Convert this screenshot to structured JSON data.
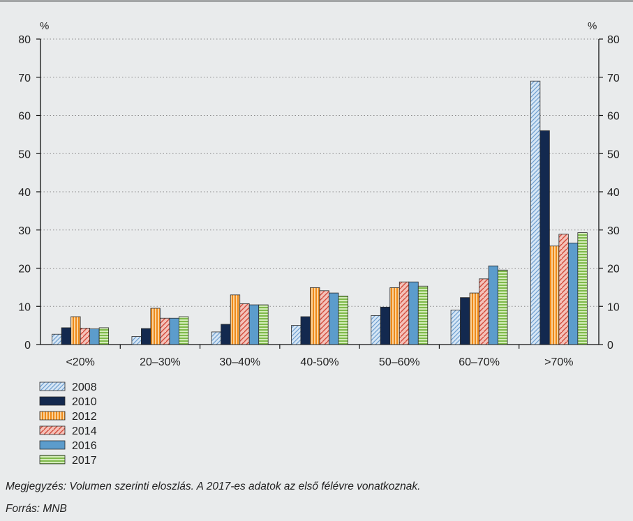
{
  "chart_data": {
    "type": "bar",
    "y_unit_left": "%",
    "y_unit_right": "%",
    "ylim": [
      0,
      80
    ],
    "y_ticks": [
      0,
      10,
      20,
      30,
      40,
      50,
      60,
      70,
      80
    ],
    "grid": "horizontal dotted",
    "categories": [
      "<20%",
      "20–30%",
      "30–40%",
      "40-50%",
      "50–60%",
      "60–70%",
      ">70%"
    ],
    "series": [
      {
        "name": "2008",
        "color": "#c6dcf0",
        "pattern": "diagonal-blue",
        "values": [
          2.7,
          2.1,
          3.3,
          5.0,
          7.6,
          9.0,
          69.0
        ]
      },
      {
        "name": "2010",
        "color": "#13294f",
        "pattern": "solid-navy",
        "values": [
          4.4,
          4.2,
          5.3,
          7.3,
          9.8,
          12.3,
          56.0
        ]
      },
      {
        "name": "2012",
        "color": "#f39a2b",
        "pattern": "vertical-orange",
        "values": [
          7.3,
          9.5,
          13.0,
          14.9,
          14.9,
          13.5,
          25.8
        ]
      },
      {
        "name": "2014",
        "color": "#e99a8e",
        "pattern": "diagonal-red",
        "values": [
          4.3,
          6.9,
          10.7,
          14.1,
          16.4,
          17.2,
          28.9
        ]
      },
      {
        "name": "2016",
        "color": "#5c9ccc",
        "pattern": "solid-blue",
        "values": [
          4.1,
          6.9,
          10.4,
          13.5,
          16.4,
          20.6,
          26.6
        ]
      },
      {
        "name": "2017",
        "color": "#9ccc6a",
        "pattern": "horizontal-green",
        "values": [
          4.4,
          7.3,
          10.4,
          12.7,
          15.3,
          19.5,
          29.3
        ]
      }
    ],
    "legend_position": "bottom-left"
  },
  "notes": {
    "megjegyzes": "Megjegyzés: Volumen szerinti eloszlás. A 2017-es adatok az első félévre vonatkoznak.",
    "forras": "Forrás: MNB"
  }
}
